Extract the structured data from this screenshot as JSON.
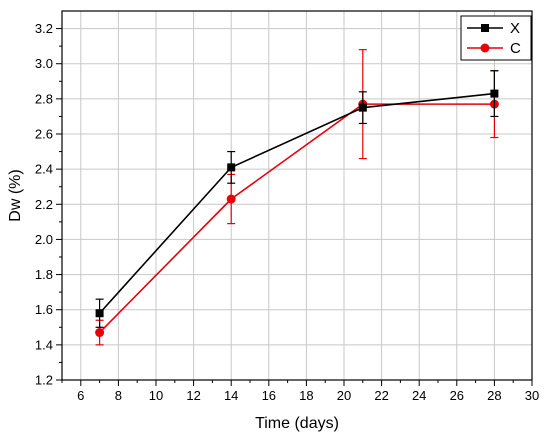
{
  "chart_data": {
    "type": "line",
    "title": "",
    "xlabel": "Time (days)",
    "ylabel": "Dw (%)",
    "xlim": [
      5,
      30
    ],
    "ylim": [
      1.2,
      3.3
    ],
    "x_ticks": [
      6,
      8,
      10,
      12,
      14,
      16,
      18,
      20,
      22,
      24,
      26,
      28,
      30
    ],
    "x_tick_labels": [
      "6",
      "8",
      "10",
      "12",
      "14",
      "16",
      "18",
      "20",
      "22",
      "24",
      "26",
      "28",
      "30"
    ],
    "y_ticks": [
      1.2,
      1.4,
      1.6,
      1.8,
      2.0,
      2.2,
      2.4,
      2.6,
      2.8,
      3.0,
      3.2
    ],
    "y_tick_labels": [
      "1.2",
      "1.4",
      "1.6",
      "1.8",
      "2.0",
      "2.2",
      "2.4",
      "2.6",
      "2.8",
      "3.0",
      "3.2"
    ],
    "grid": true,
    "legend_position": "top-right",
    "x": [
      7,
      14,
      21,
      28
    ],
    "series": [
      {
        "name": "X",
        "color": "#000000",
        "marker": "square",
        "values": [
          1.58,
          2.41,
          2.75,
          2.83
        ],
        "errors": [
          0.08,
          0.09,
          0.09,
          0.13
        ]
      },
      {
        "name": "C",
        "color": "#e8000b",
        "marker": "circle",
        "values": [
          1.47,
          2.23,
          2.77,
          2.77
        ],
        "errors": [
          0.07,
          0.14,
          0.31,
          0.19
        ]
      }
    ]
  }
}
